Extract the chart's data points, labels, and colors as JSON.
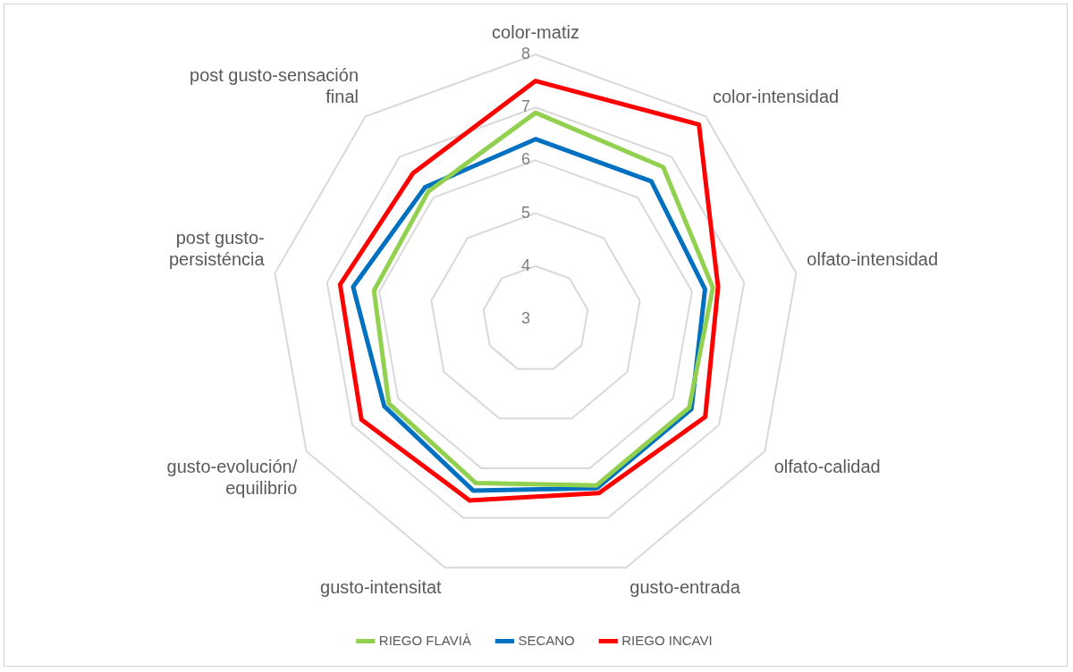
{
  "chart_data": {
    "type": "radar",
    "categories": [
      "color-matiz",
      "color-intensidad",
      "olfato-intensidad",
      "olfato-calidad",
      "gusto-entrada",
      "gusto-intensitat",
      "gusto-evolución/equilibrio",
      "post gusto-persisténcia",
      "post gusto-sensación final"
    ],
    "series": [
      {
        "name": "RIEGO FLAVIÀ",
        "color": "#92d050",
        "values": [
          6.9,
          6.75,
          6.4,
          6.35,
          6.35,
          6.3,
          6.2,
          6.1,
          6.15
        ]
      },
      {
        "name": "SECANO",
        "color": "#0070c0",
        "values": [
          6.4,
          6.4,
          6.25,
          6.4,
          6.4,
          6.45,
          6.3,
          6.5,
          6.25
        ]
      },
      {
        "name": "RIEGO INCAVI",
        "color": "#ff0000",
        "values": [
          7.5,
          7.8,
          6.5,
          6.7,
          6.5,
          6.65,
          6.8,
          6.75,
          6.6
        ]
      }
    ],
    "ylim": [
      3,
      8
    ],
    "yticks": [
      3,
      4,
      5,
      6,
      7,
      8
    ],
    "grid": true,
    "legend": "bottom",
    "marker": "none"
  }
}
